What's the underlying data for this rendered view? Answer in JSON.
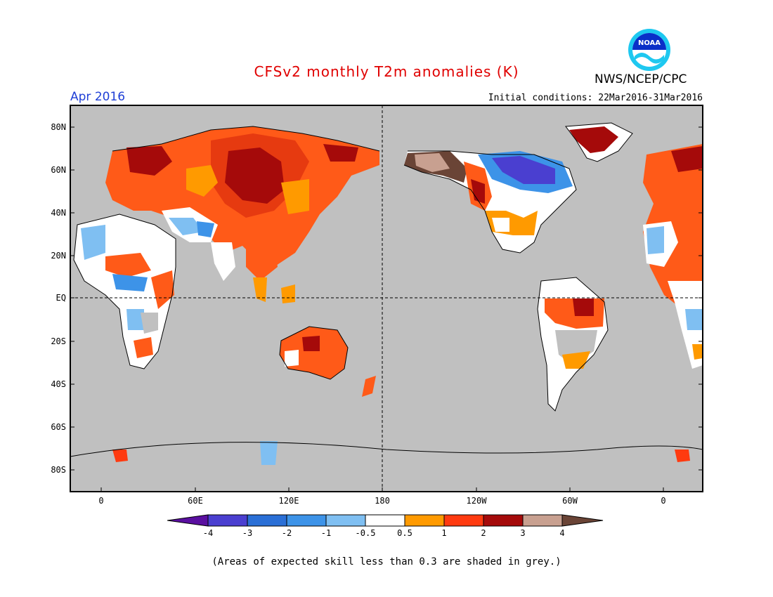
{
  "title": "CFSv2 monthly T2m anomalies (K)",
  "agency": "NWS/NCEP/CPC",
  "logo_text": "NOAA",
  "forecast_month": "Apr 2016",
  "initial_conditions": "Initial conditions: 22Mar2016-31Mar2016",
  "lat_labels": [
    "80N",
    "60N",
    "40N",
    "20N",
    "EQ",
    "20S",
    "40S",
    "60S",
    "80S"
  ],
  "lon_labels": [
    "0",
    "60E",
    "120E",
    "180",
    "120W",
    "60W",
    "0"
  ],
  "colorbar": {
    "bins": [
      {
        "label": "-4",
        "color": "#5a0fa0"
      },
      {
        "label": "-3",
        "color": "#4a3fd0"
      },
      {
        "label": "-2",
        "color": "#2a6fd6"
      },
      {
        "label": "-1",
        "color": "#3d93e8"
      },
      {
        "label": "-0.5",
        "color": "#7fbff2"
      },
      {
        "label": "0.5",
        "color": "#ffffff"
      },
      {
        "label": "1",
        "color": "#ff9a00"
      },
      {
        "label": "2",
        "color": "#ff3a10"
      },
      {
        "label": "3",
        "color": "#a50a0a"
      },
      {
        "label": "4",
        "color": "#c8a090"
      },
      {
        "label": "",
        "color": "#6a4436"
      }
    ]
  },
  "colors": {
    "ocean_grey": "#c0c0c0",
    "title_red": "#e00000",
    "month_blue": "#1f3fd6"
  },
  "footnote": "(Areas of expected skill less than 0.3 are shaded in grey.)"
}
